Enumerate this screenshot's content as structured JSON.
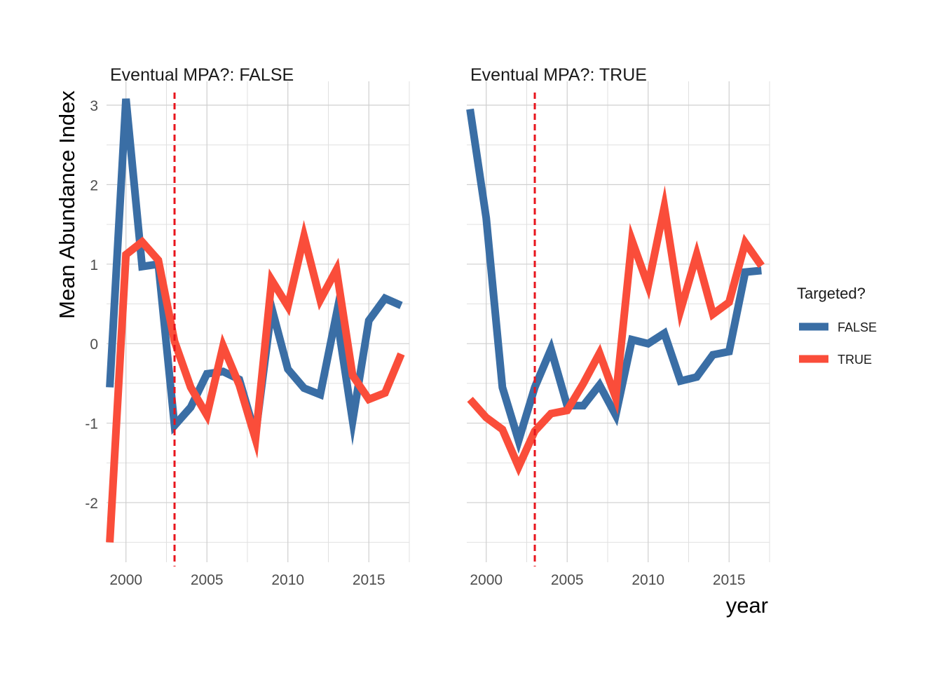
{
  "chart_data": {
    "type": "line",
    "ylabel": "Mean Abundance Index",
    "xlabel": "year",
    "xlim": [
      1998.8,
      2017.5
    ],
    "ylim": [
      -2.75,
      3.3
    ],
    "x_ticks": [
      2000,
      2005,
      2010,
      2015
    ],
    "x_tick_labels": [
      "2000",
      "2005",
      "2010",
      "2015"
    ],
    "y_ticks": [
      -2,
      -1,
      0,
      1,
      2,
      3
    ],
    "y_tick_labels": [
      "-2",
      "-1",
      "0",
      "1",
      "2",
      "3"
    ],
    "grid": true,
    "reference_line": {
      "x": 2003,
      "color": "#e8141c",
      "style": "dashed"
    },
    "legend": {
      "title": "Targeted?",
      "position": "right",
      "entries": [
        {
          "label": "FALSE",
          "color": "#3a6ea5"
        },
        {
          "label": "TRUE",
          "color": "#fa4d3a"
        }
      ]
    },
    "panels": [
      {
        "title": "Eventual MPA?: FALSE",
        "series": [
          {
            "name": "FALSE",
            "color": "#3a6ea5",
            "x": [
              1999,
              2000,
              2001,
              2002,
              2003,
              2004,
              2005,
              2006,
              2007,
              2008,
              2009,
              2010,
              2011,
              2012,
              2013,
              2014,
              2015,
              2016,
              2017
            ],
            "y": [
              -0.55,
              3.08,
              0.97,
              1.0,
              -1.03,
              -0.8,
              -0.38,
              -0.35,
              -0.45,
              -1.15,
              0.45,
              -0.32,
              -0.56,
              -0.64,
              0.37,
              -0.97,
              0.29,
              0.57,
              0.48
            ]
          },
          {
            "name": "TRUE",
            "color": "#fa4d3a",
            "x": [
              1999,
              2000,
              2001,
              2002,
              2003,
              2004,
              2005,
              2006,
              2007,
              2008,
              2009,
              2010,
              2011,
              2012,
              2013,
              2014,
              2015,
              2016,
              2017
            ],
            "y": [
              -2.5,
              1.12,
              1.28,
              1.05,
              0.03,
              -0.55,
              -0.9,
              -0.03,
              -0.52,
              -1.2,
              0.8,
              0.47,
              1.35,
              0.55,
              0.93,
              -0.4,
              -0.7,
              -0.62,
              -0.13
            ]
          }
        ]
      },
      {
        "title": "Eventual MPA?: TRUE",
        "series": [
          {
            "name": "FALSE",
            "color": "#3a6ea5",
            "x": [
              1999,
              2000,
              2001,
              2002,
              2003,
              2004,
              2005,
              2006,
              2007,
              2008,
              2009,
              2010,
              2011,
              2012,
              2013,
              2014,
              2015,
              2016,
              2017
            ],
            "y": [
              2.95,
              1.58,
              -0.55,
              -1.22,
              -0.55,
              -0.07,
              -0.78,
              -0.78,
              -0.52,
              -0.9,
              0.05,
              0.0,
              0.13,
              -0.47,
              -0.42,
              -0.14,
              -0.1,
              0.9,
              0.92
            ]
          },
          {
            "name": "TRUE",
            "color": "#fa4d3a",
            "x": [
              1999,
              2000,
              2001,
              2002,
              2003,
              2004,
              2005,
              2006,
              2007,
              2008,
              2009,
              2010,
              2011,
              2012,
              2013,
              2014,
              2015,
              2016,
              2017
            ],
            "y": [
              -0.7,
              -0.93,
              -1.08,
              -1.55,
              -1.1,
              -0.88,
              -0.84,
              -0.5,
              -0.12,
              -0.68,
              1.3,
              0.73,
              1.72,
              0.42,
              1.12,
              0.37,
              0.52,
              1.27,
              0.98
            ]
          }
        ]
      }
    ]
  }
}
